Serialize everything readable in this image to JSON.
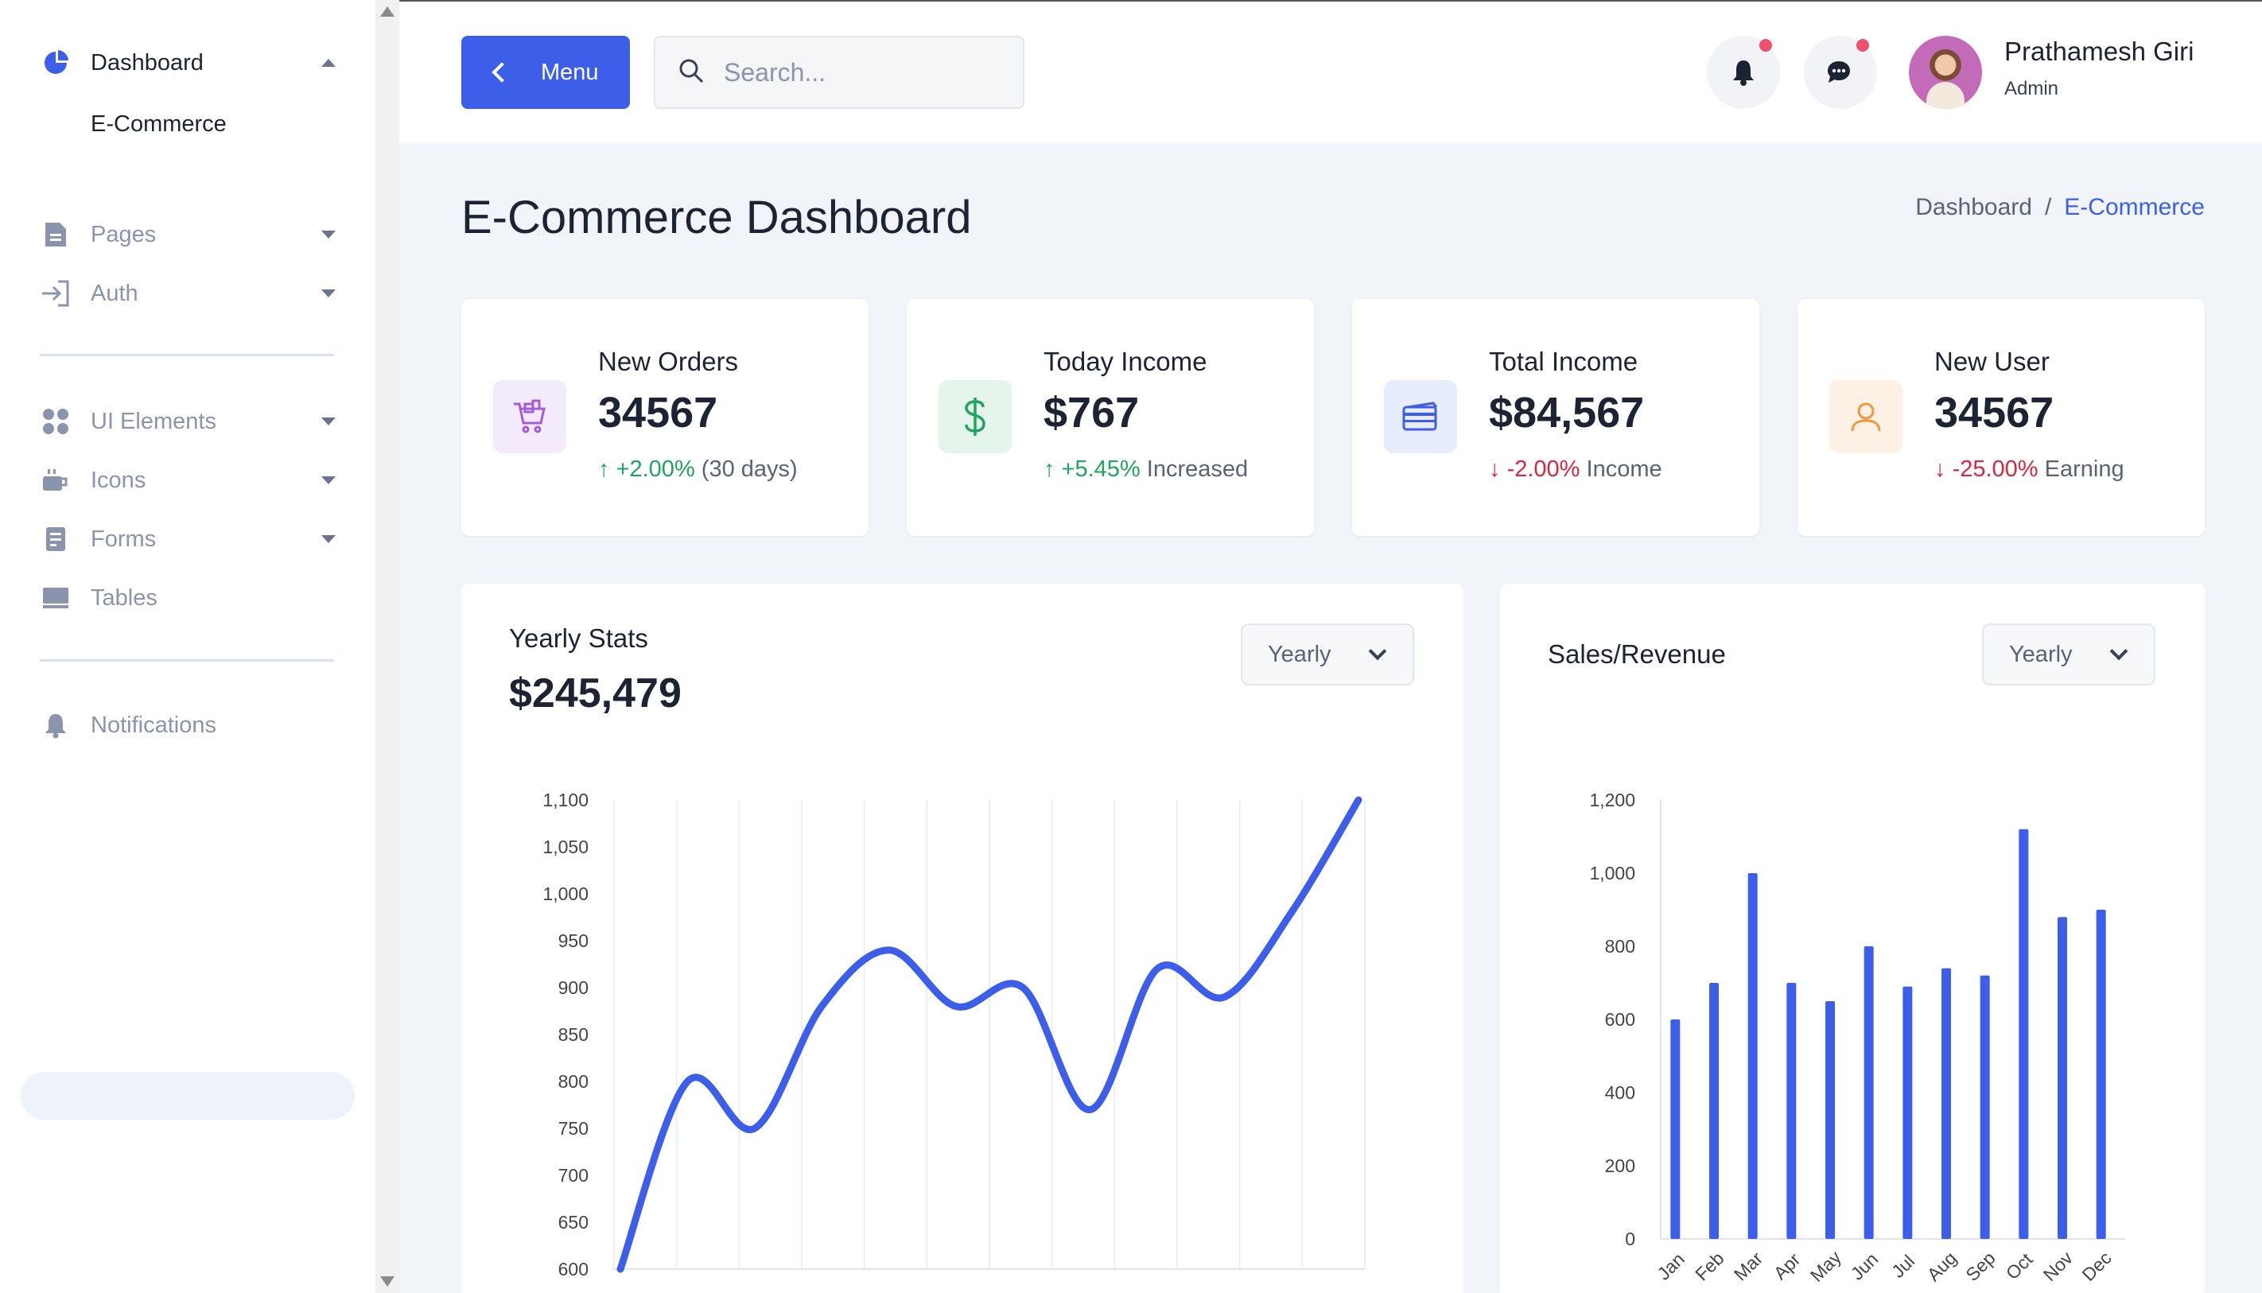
{
  "sidebar": {
    "dashboard": {
      "label": "Dashboard",
      "sub": [
        "E-Commerce"
      ]
    },
    "items": [
      {
        "label": "Pages"
      },
      {
        "label": "Auth"
      },
      {
        "label": "UI Elements"
      },
      {
        "label": "Icons"
      },
      {
        "label": "Forms"
      },
      {
        "label": "Tables"
      },
      {
        "label": "Notifications"
      }
    ]
  },
  "header": {
    "menu_label": "Menu",
    "search_placeholder": "Search...",
    "user": {
      "name": "Prathamesh Giri",
      "role": "Admin"
    }
  },
  "page": {
    "title": "E-Commerce Dashboard",
    "breadcrumb": {
      "root": "Dashboard",
      "sep": "/",
      "current": "E-Commerce"
    }
  },
  "cards": [
    {
      "title": "New Orders",
      "value": "34567",
      "trend_dir": "up",
      "trend_arrow": "↑",
      "trend_value": "+2.00%",
      "trend_text": "(30 days)",
      "icon": "cart-icon",
      "icon_bg": "#f3eafc",
      "icon_color": "#a55bd8"
    },
    {
      "title": "Today Income",
      "value": "$767",
      "trend_dir": "up",
      "trend_arrow": "↑",
      "trend_value": "+5.45%",
      "trend_text": "Increased",
      "icon": "dollar-icon",
      "icon_bg": "#e6f5ec",
      "icon_color": "#21a360"
    },
    {
      "title": "Total Income",
      "value": "$84,567",
      "trend_dir": "down",
      "trend_arrow": "↓",
      "trend_value": "-2.00%",
      "trend_text": "Income",
      "icon": "credit-card-icon",
      "icon_bg": "#e8edfd",
      "icon_color": "#3c5ee8"
    },
    {
      "title": "New User",
      "value": "34567",
      "trend_dir": "down",
      "trend_arrow": "↓",
      "trend_value": "-25.00%",
      "trend_text": "Earning",
      "icon": "user-icon",
      "icon_bg": "#fdf1e6",
      "icon_color": "#ef9a3a"
    }
  ],
  "yearly_stats": {
    "title": "Yearly Stats",
    "value": "$245,479",
    "select": "Yearly"
  },
  "sales_revenue": {
    "title": "Sales/Revenue",
    "select": "Yearly"
  },
  "colors": {
    "accent": "#3c5ee8",
    "up": "#21a360",
    "down": "#d9263c"
  },
  "chart_data": [
    {
      "type": "line",
      "title": "Yearly Stats",
      "xlabel": "",
      "ylabel": "",
      "ylim": [
        600,
        1100
      ],
      "yticks": [
        1100,
        1050,
        1000,
        950,
        900,
        850,
        800,
        750,
        700,
        650,
        600
      ],
      "grid": "vertical",
      "x": [
        0,
        1,
        2,
        3,
        4,
        5,
        6,
        7,
        8,
        9,
        10,
        11
      ],
      "series": [
        {
          "values": [
            600,
            800,
            750,
            880,
            940,
            880,
            900,
            770,
            920,
            890,
            980,
            1100
          ]
        }
      ]
    },
    {
      "type": "bar",
      "title": "Sales/Revenue",
      "xlabel": "",
      "ylabel": "",
      "ylim": [
        0,
        1200
      ],
      "yticks": [
        1200,
        1000,
        800,
        600,
        400,
        200,
        0
      ],
      "categories": [
        "Jan",
        "Feb",
        "Mar",
        "Apr",
        "May",
        "Jun",
        "Jul",
        "Aug",
        "Sep",
        "Oct",
        "Nov",
        "Dec"
      ],
      "series": [
        {
          "values": [
            600,
            700,
            1000,
            700,
            650,
            800,
            690,
            740,
            720,
            1120,
            880,
            900
          ]
        }
      ]
    }
  ]
}
